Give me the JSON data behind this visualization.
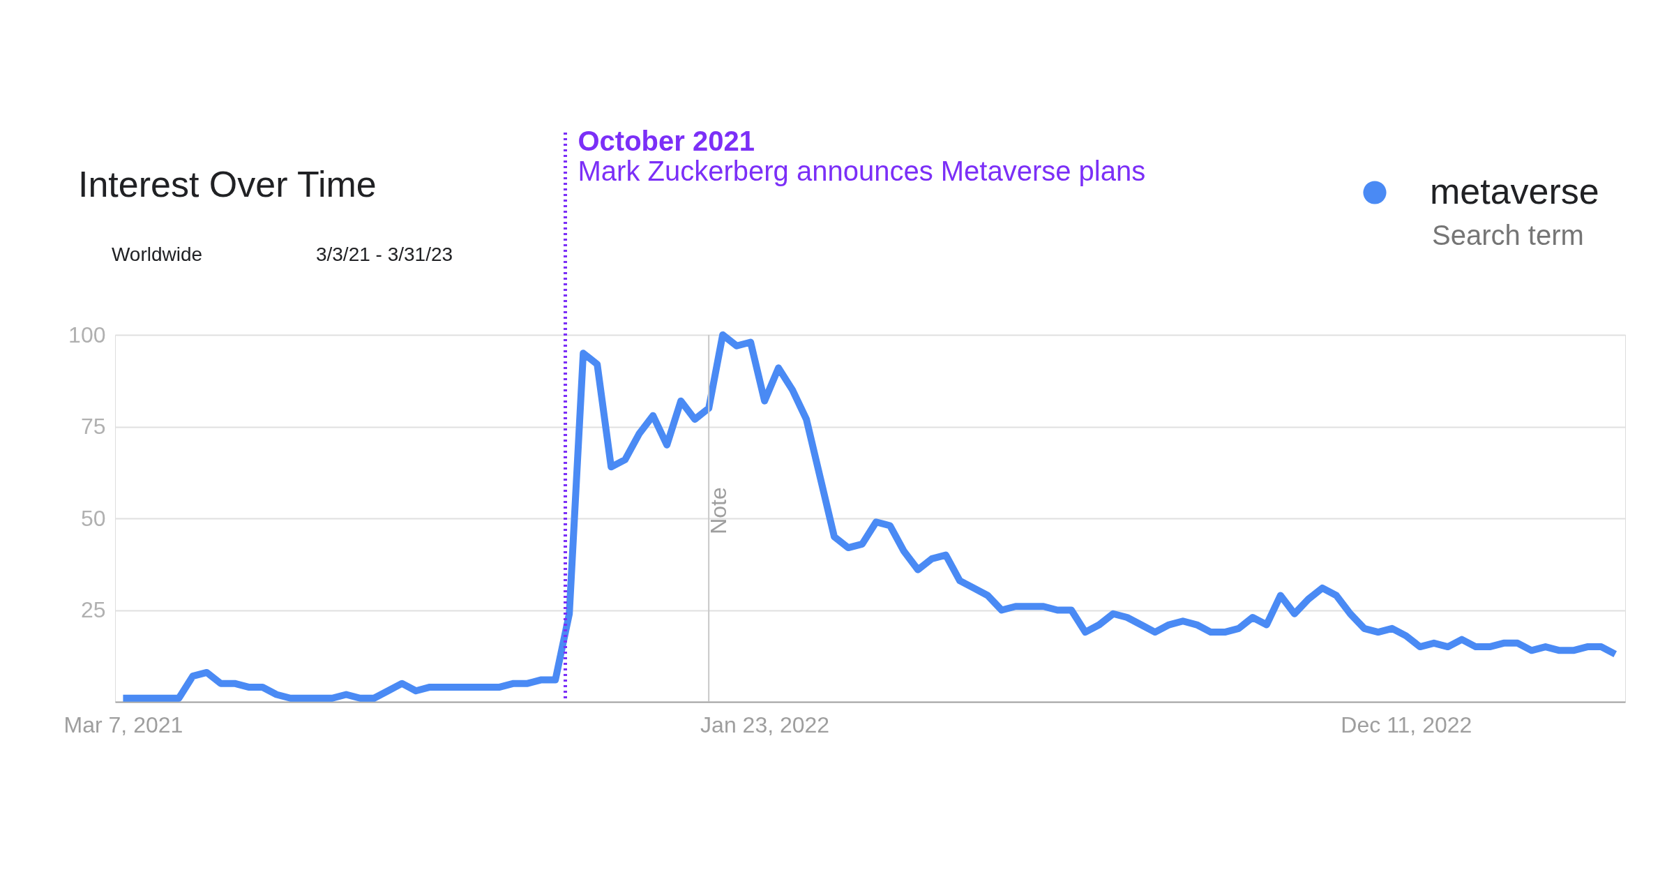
{
  "chart_data": {
    "type": "line",
    "title": "Interest Over Time",
    "x": [
      "2021-03-07",
      "2021-03-14",
      "2021-03-21",
      "2021-03-28",
      "2021-04-04",
      "2021-04-11",
      "2021-04-18",
      "2021-04-25",
      "2021-05-02",
      "2021-05-09",
      "2021-05-16",
      "2021-05-23",
      "2021-05-30",
      "2021-06-06",
      "2021-06-13",
      "2021-06-20",
      "2021-06-27",
      "2021-07-04",
      "2021-07-11",
      "2021-07-18",
      "2021-07-25",
      "2021-08-01",
      "2021-08-08",
      "2021-08-15",
      "2021-08-22",
      "2021-08-29",
      "2021-09-05",
      "2021-09-12",
      "2021-09-19",
      "2021-09-26",
      "2021-10-03",
      "2021-10-10",
      "2021-10-17",
      "2021-10-24",
      "2021-10-31",
      "2021-11-07",
      "2021-11-14",
      "2021-11-21",
      "2021-11-28",
      "2021-12-05",
      "2021-12-12",
      "2021-12-19",
      "2021-12-26",
      "2022-01-02",
      "2022-01-09",
      "2022-01-16",
      "2022-01-23",
      "2022-01-30",
      "2022-02-06",
      "2022-02-13",
      "2022-02-20",
      "2022-02-27",
      "2022-03-06",
      "2022-03-13",
      "2022-03-20",
      "2022-03-27",
      "2022-04-03",
      "2022-04-10",
      "2022-04-17",
      "2022-04-24",
      "2022-05-01",
      "2022-05-08",
      "2022-05-15",
      "2022-05-22",
      "2022-05-29",
      "2022-06-05",
      "2022-06-12",
      "2022-06-19",
      "2022-06-26",
      "2022-07-03",
      "2022-07-10",
      "2022-07-17",
      "2022-07-24",
      "2022-07-31",
      "2022-08-07",
      "2022-08-14",
      "2022-08-21",
      "2022-08-28",
      "2022-09-04",
      "2022-09-11",
      "2022-09-18",
      "2022-09-25",
      "2022-10-02",
      "2022-10-09",
      "2022-10-16",
      "2022-10-23",
      "2022-10-30",
      "2022-11-06",
      "2022-11-13",
      "2022-11-20",
      "2022-11-27",
      "2022-12-04",
      "2022-12-11",
      "2022-12-18",
      "2022-12-25",
      "2023-01-01",
      "2023-01-08",
      "2023-01-15",
      "2023-01-22",
      "2023-01-29",
      "2023-02-05",
      "2023-02-12",
      "2023-02-19",
      "2023-02-26",
      "2023-03-05",
      "2023-03-12",
      "2023-03-19",
      "2023-03-26"
    ],
    "series": [
      {
        "name": "metaverse",
        "color": "#4a8af4",
        "values": [
          1,
          1,
          1,
          1,
          1,
          7,
          8,
          5,
          5,
          4,
          4,
          2,
          1,
          1,
          1,
          1,
          2,
          1,
          1,
          3,
          5,
          3,
          4,
          4,
          4,
          4,
          4,
          4,
          5,
          5,
          6,
          6,
          24,
          95,
          92,
          64,
          66,
          73,
          78,
          70,
          82,
          77,
          80,
          100,
          97,
          98,
          82,
          91,
          85,
          77,
          61,
          45,
          42,
          43,
          49,
          48,
          41,
          36,
          39,
          40,
          33,
          31,
          29,
          25,
          26,
          26,
          26,
          25,
          25,
          19,
          21,
          24,
          23,
          21,
          19,
          21,
          22,
          21,
          19,
          19,
          20,
          23,
          21,
          29,
          24,
          28,
          31,
          29,
          24,
          20,
          19,
          20,
          18,
          15,
          16,
          15,
          17,
          15,
          15,
          16,
          16,
          14,
          15,
          14,
          14,
          15,
          15,
          13
        ]
      }
    ],
    "xlim": [
      "2021-03-03",
      "2023-03-31"
    ],
    "xticks": [
      {
        "value": "2021-03-07",
        "label": "Mar 7, 2021"
      },
      {
        "value": "2022-01-23",
        "label": "Jan 23, 2022"
      },
      {
        "value": "2022-12-11",
        "label": "Dec 11, 2022"
      }
    ],
    "ylim": [
      0,
      100
    ],
    "yticks": [
      25,
      50,
      75,
      100
    ],
    "grid": "y",
    "legend": "top right",
    "legend_title": "Search term",
    "line_style": "solid",
    "marker": "none",
    "ref_lines": [
      {
        "axis": "x",
        "value": "2021-10-15",
        "label": "October 2021",
        "color": "#7b2ff7",
        "line_style": "dotted"
      },
      {
        "axis": "x",
        "value": "2021-12-26",
        "label": "Note",
        "color": "#c8c8c8",
        "line_style": "solid"
      }
    ],
    "annotations": [
      "Mark Zuckerberg announces Metaverse plans",
      "Worldwide",
      "3/3/21 - 3/31/23"
    ]
  }
}
